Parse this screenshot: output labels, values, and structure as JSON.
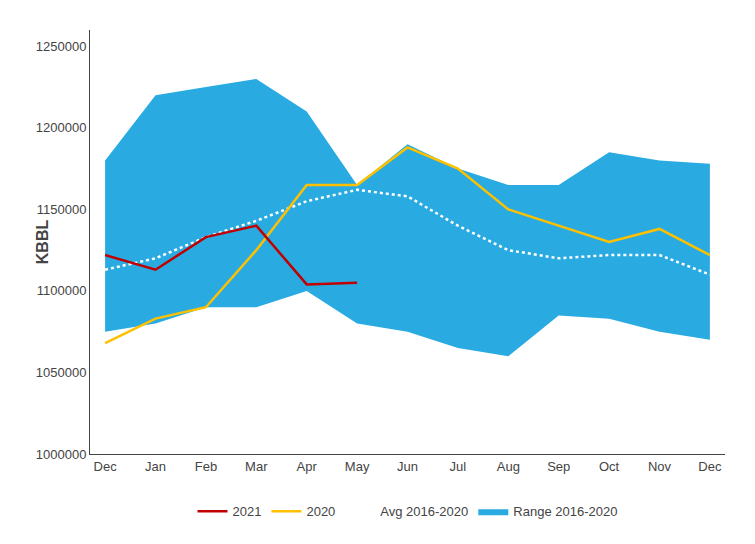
{
  "chart_data": {
    "type": "line",
    "categories": [
      "Dec",
      "Jan",
      "Feb",
      "Mar",
      "Apr",
      "May",
      "Jun",
      "Jul",
      "Aug",
      "Sep",
      "Oct",
      "Nov",
      "Dec"
    ],
    "series": [
      {
        "name": "Range 2016-2020",
        "type": "band",
        "color": "#29ABE2",
        "lower": [
          1075000,
          1080000,
          1090000,
          1090000,
          1100000,
          1080000,
          1075000,
          1065000,
          1060000,
          1085000,
          1083000,
          1075000,
          1070000
        ],
        "upper": [
          1180000,
          1220000,
          1225000,
          1230000,
          1210000,
          1165000,
          1190000,
          1175000,
          1165000,
          1165000,
          1185000,
          1180000,
          1178000
        ]
      },
      {
        "name": "Avg 2016-2020",
        "type": "line",
        "color": "#FFFFFF",
        "line_style": "dotted",
        "values": [
          1113000,
          1120000,
          1133000,
          1143000,
          1155000,
          1162000,
          1158000,
          1140000,
          1125000,
          1120000,
          1122000,
          1122000,
          1110000
        ]
      },
      {
        "name": "2020",
        "type": "line",
        "color": "#FFC000",
        "line_style": "solid",
        "values": [
          1068000,
          1083000,
          1090000,
          1125000,
          1165000,
          1165000,
          1188000,
          1175000,
          1150000,
          1140000,
          1130000,
          1138000,
          1122000
        ]
      },
      {
        "name": "2021",
        "type": "line",
        "color": "#C00000",
        "line_style": "solid",
        "values": [
          1122000,
          1113000,
          1133000,
          1140000,
          1104000,
          1105000,
          null,
          null,
          null,
          null,
          null,
          null,
          null
        ]
      }
    ],
    "ylabel": "KBBL",
    "ylim": [
      1000000,
      1260000
    ],
    "yticks": [
      1000000,
      1050000,
      1100000,
      1150000,
      1200000,
      1250000
    ],
    "grid": false,
    "legend": "bottom"
  }
}
